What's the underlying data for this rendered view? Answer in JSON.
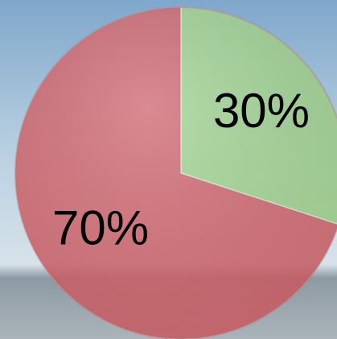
{
  "chart_data": {
    "type": "pie",
    "values": [
      30,
      70
    ],
    "value_labels": [
      "30%",
      "70%"
    ],
    "colors": [
      "#a6d98e",
      "#d9626a"
    ]
  }
}
